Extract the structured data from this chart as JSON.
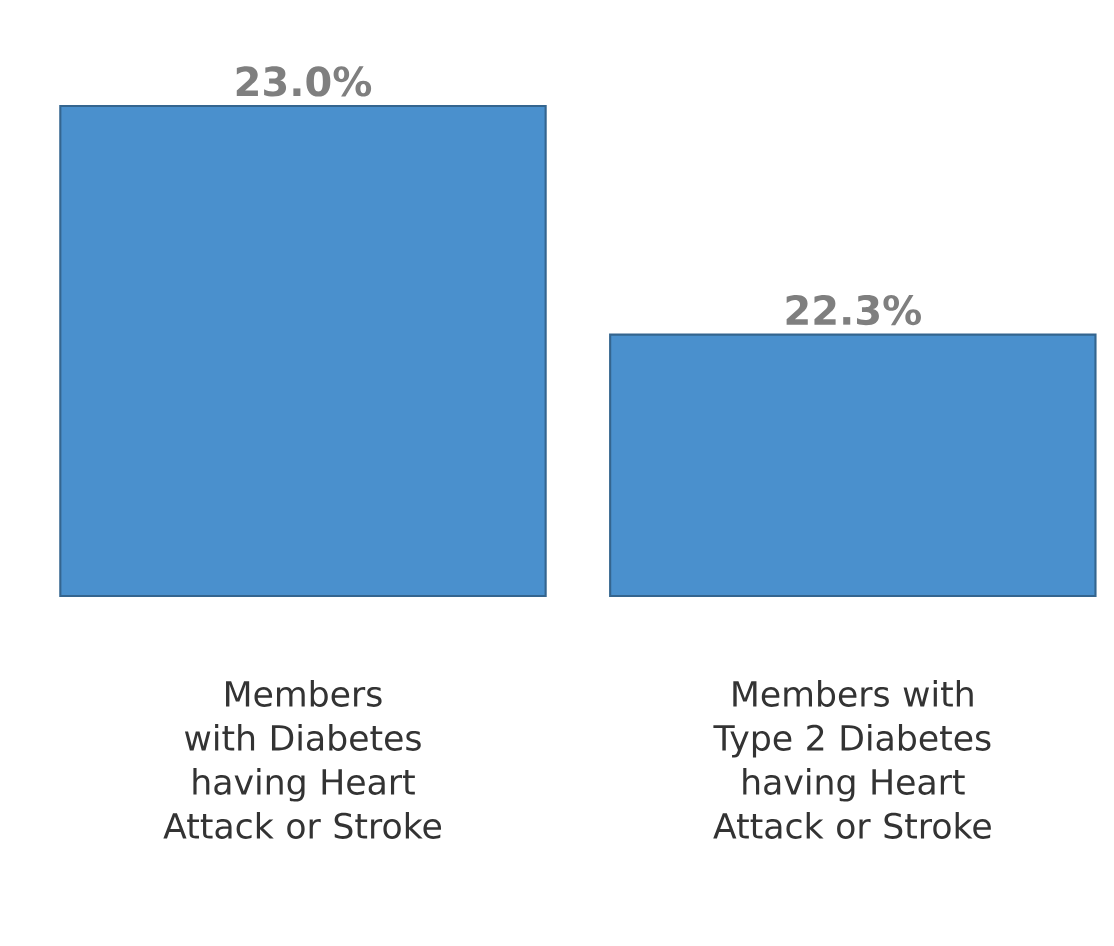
{
  "chart_data": {
    "type": "bar",
    "categories": [
      "Members with Diabetes having Heart Attack or Stroke",
      "Members with Type 2 Diabetes having Heart Attack or Stroke"
    ],
    "values": [
      23.0,
      22.3
    ],
    "value_labels": [
      "23.0%",
      "22.3%"
    ],
    "color": "#4a90cd",
    "ylim": [
      21.5,
      23.0
    ]
  }
}
